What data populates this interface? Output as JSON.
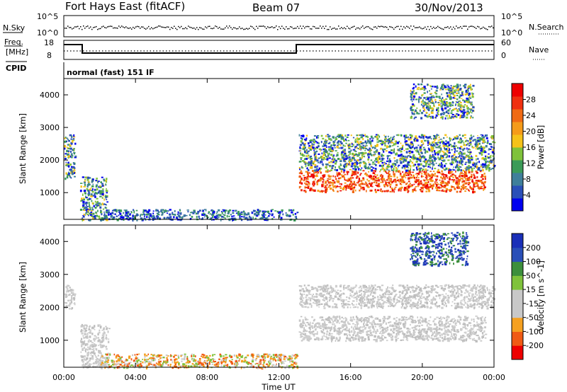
{
  "header": {
    "station": "Fort Hays East (fitACF)",
    "beam": "Beam 07",
    "date": "30/Nov/2013"
  },
  "noise_panel": {
    "left_label": "N.Sky",
    "right_label": "N.Search",
    "left_ticks": [
      "10^5",
      "10^0"
    ],
    "right_ticks": [
      "10^5",
      "10^0"
    ]
  },
  "freq_panel": {
    "left_label_1": "Freq.",
    "left_label_2": "[MHz]",
    "right_label": "Nave",
    "left_ticks": [
      "18",
      "8"
    ],
    "right_ticks": [
      "60",
      "0"
    ]
  },
  "cpid": {
    "label": "CPID",
    "program": "normal (fast) 151 IF"
  },
  "colors": {
    "power_scale": [
      "#0000ee",
      "#2a4fb8",
      "#3f7f9a",
      "#3b9b58",
      "#7fc23b",
      "#f5c21a",
      "#f59b1a",
      "#f06a14",
      "#f03010",
      "#ee0000"
    ],
    "velocity_scale": [
      "#ee0000",
      "#f05a14",
      "#f5a020",
      "#c8c8c8",
      "#c8c8c8",
      "#7fc23b",
      "#3c8f3c",
      "#2a4fb8",
      "#1a2fb8"
    ]
  },
  "chart_data": [
    {
      "type": "heatmap",
      "name": "Power",
      "ylabel": "Slant Range [km]",
      "xlabel": "Time UT",
      "xlim": [
        0,
        24
      ],
      "ylim": [
        180,
        4500
      ],
      "x_ticks": [
        "00:00",
        "04:00",
        "08:00",
        "12:00",
        "16:00",
        "20:00",
        "00:00"
      ],
      "y_ticks": [
        1000,
        2000,
        3000,
        4000
      ],
      "colorbar": {
        "label": "Power [dB]",
        "ticks": [
          "28",
          "24",
          "20",
          "16",
          "12",
          "8",
          "4"
        ],
        "range": [
          0,
          30
        ]
      },
      "regions": [
        {
          "t_start": 0.0,
          "t_end": 0.6,
          "r_min": 1450,
          "r_max": 2800,
          "level": "mixed",
          "desc": "scatter near radar"
        },
        {
          "t_start": 0.9,
          "t_end": 2.4,
          "r_min": 180,
          "r_max": 1500,
          "level": "mixed"
        },
        {
          "t_start": 13.1,
          "t_end": 23.5,
          "r_min": 1050,
          "r_max": 1700,
          "level": "strong (>24 dB)"
        },
        {
          "t_start": 13.1,
          "t_end": 24.0,
          "r_min": 1700,
          "r_max": 2800,
          "level": "moderate"
        },
        {
          "t_start": 19.3,
          "t_end": 22.8,
          "r_min": 3300,
          "r_max": 4350,
          "level": "moderate"
        },
        {
          "t_start": 2.0,
          "t_end": 13.0,
          "r_min": 180,
          "r_max": 500,
          "level": "weak ground scatter band"
        }
      ]
    },
    {
      "type": "heatmap",
      "name": "Velocity",
      "ylabel": "Slant Range [km]",
      "xlabel": "Time UT",
      "xlim": [
        0,
        24
      ],
      "ylim": [
        180,
        4500
      ],
      "x_ticks": [
        "00:00",
        "04:00",
        "08:00",
        "12:00",
        "16:00",
        "20:00",
        "00:00"
      ],
      "y_ticks": [
        1000,
        2000,
        3000,
        4000
      ],
      "colorbar": {
        "label": "Velocity [m s^-1]",
        "ticks": [
          "200",
          "100",
          "50",
          "15",
          "-15",
          "-50",
          "-100",
          "-200"
        ],
        "range": [
          -250,
          250
        ]
      },
      "regions": [
        {
          "t_start": 0.0,
          "t_end": 0.6,
          "r_min": 1950,
          "r_max": 2700,
          "level": "ground scatter (grey)"
        },
        {
          "t_start": 0.9,
          "t_end": 2.5,
          "r_min": 180,
          "r_max": 1500,
          "level": "ground scatter (grey)"
        },
        {
          "t_start": 13.1,
          "t_end": 23.5,
          "r_min": 1000,
          "r_max": 1750,
          "level": "ground scatter (grey)"
        },
        {
          "t_start": 13.1,
          "t_end": 24.0,
          "r_min": 2000,
          "r_max": 2700,
          "level": "ground scatter (grey)"
        },
        {
          "t_start": 19.3,
          "t_end": 22.5,
          "r_min": 3300,
          "r_max": 4300,
          "level": "positive ~ +200 (blue)"
        },
        {
          "t_start": 2.0,
          "t_end": 13.0,
          "r_min": 180,
          "r_max": 600,
          "level": "weak negative (orange/green)"
        }
      ]
    }
  ]
}
